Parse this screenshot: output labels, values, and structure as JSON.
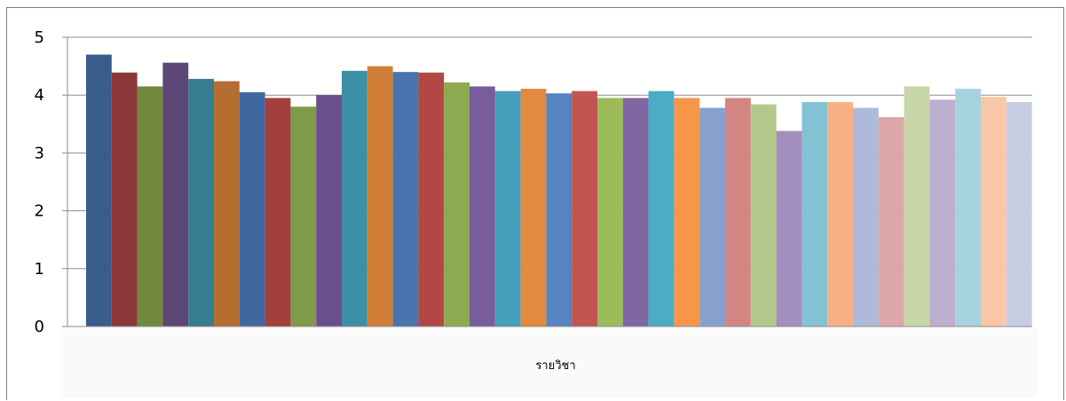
{
  "chart_data": {
    "type": "bar",
    "title": "",
    "xlabel": "รายวิชา",
    "ylabel": "",
    "ylim": [
      0,
      5
    ],
    "yticks": [
      0,
      1,
      2,
      3,
      4,
      5
    ],
    "grid": true,
    "legend": "none",
    "values": [
      4.7,
      4.39,
      4.15,
      4.56,
      4.28,
      4.24,
      4.05,
      3.95,
      3.8,
      4.0,
      4.42,
      4.5,
      4.4,
      4.39,
      4.22,
      4.15,
      4.07,
      4.11,
      4.03,
      4.07,
      3.95,
      3.95,
      4.07,
      3.95,
      3.78,
      3.95,
      3.84,
      3.38,
      3.88,
      3.88,
      3.78,
      3.62,
      4.15,
      3.92,
      4.11,
      3.97,
      3.88
    ],
    "colors": [
      "#385D8A",
      "#8C3836",
      "#71893F",
      "#5C4776",
      "#357D91",
      "#B66D31",
      "#4068A0",
      "#A33F3C",
      "#7F9A48",
      "#6A4F8A",
      "#3D8FA6",
      "#D17F37",
      "#4875AE",
      "#B14845",
      "#8EAA51",
      "#775D9C",
      "#46A0BA",
      "#E38A3E",
      "#5584C0",
      "#C25452",
      "#9BBB59",
      "#8066A2",
      "#4BACC6",
      "#F79646",
      "#87A1CF",
      "#D38583",
      "#B3C98B",
      "#A38FBD",
      "#83C2D4",
      "#F9B184",
      "#ADBAD9",
      "#DBA8A7",
      "#C8D7AA",
      "#BCAFCF",
      "#A7D2DF",
      "#FAC6A8",
      "#C7CEE1"
    ]
  }
}
